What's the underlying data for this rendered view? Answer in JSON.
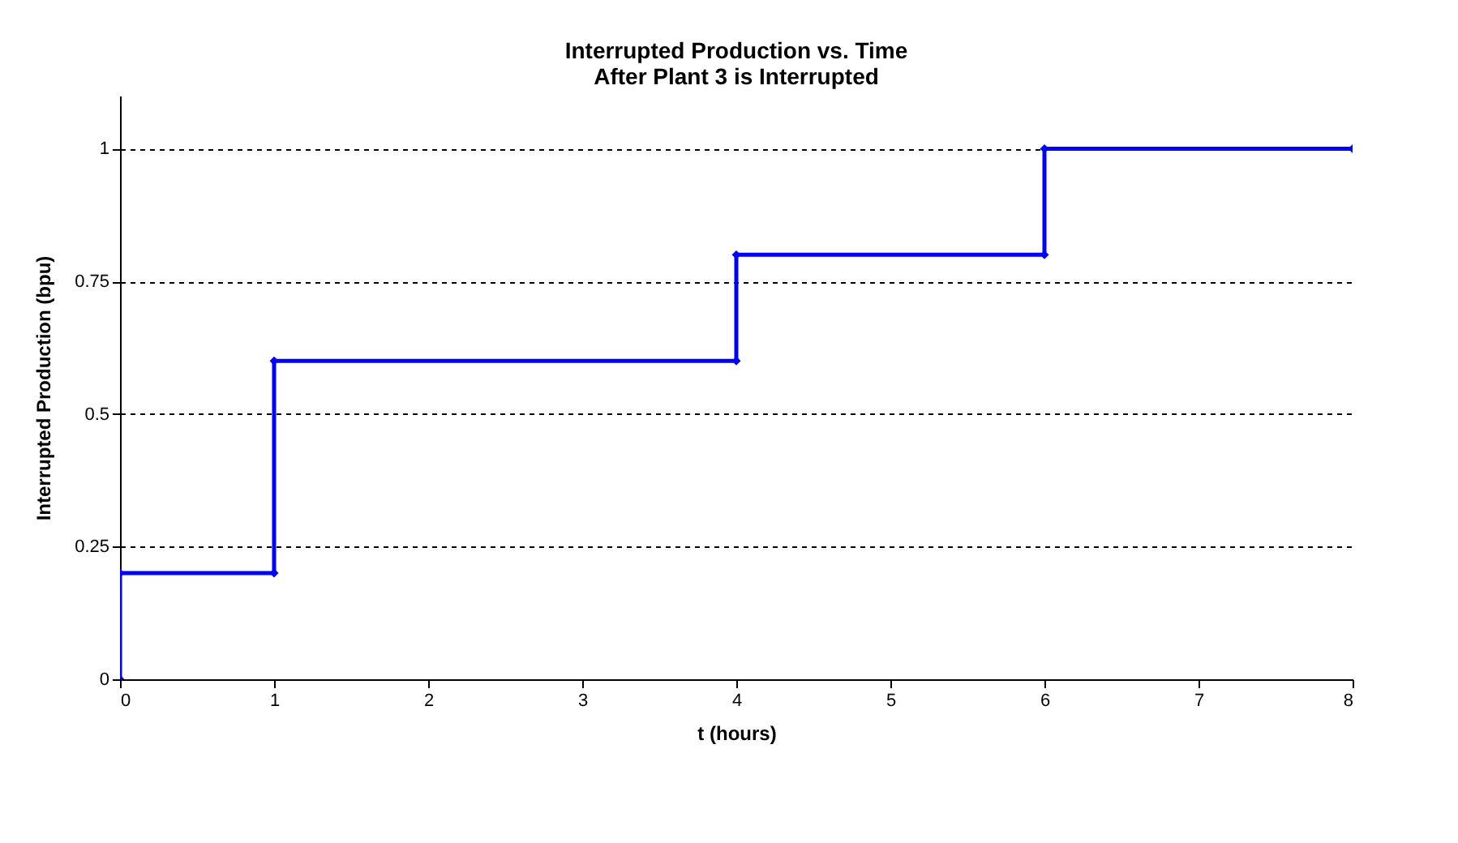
{
  "chart_data": {
    "type": "line",
    "title": [
      "Interrupted Production vs. Time",
      "After Plant 3 is Interrupted"
    ],
    "xlabel": "t (hours)",
    "ylabel": "Interrupted Production (bpu)",
    "x": [
      0,
      0,
      1,
      1,
      4,
      4,
      6,
      6,
      8
    ],
    "series": [
      {
        "color": "#0000ff",
        "values": [
          0,
          0.2,
          0.2,
          0.6,
          0.6,
          0.8,
          0.8,
          1,
          1
        ]
      }
    ],
    "xlim": [
      0,
      8
    ],
    "xticks": [
      0,
      1,
      2,
      3,
      4,
      5,
      6,
      7,
      8
    ],
    "ylim": [
      0,
      1.1
    ],
    "yticks": [
      0,
      0.25,
      0.5,
      0.75,
      1
    ],
    "grid": "y",
    "legend": false,
    "marker": "diamond",
    "line_style": "solid"
  }
}
